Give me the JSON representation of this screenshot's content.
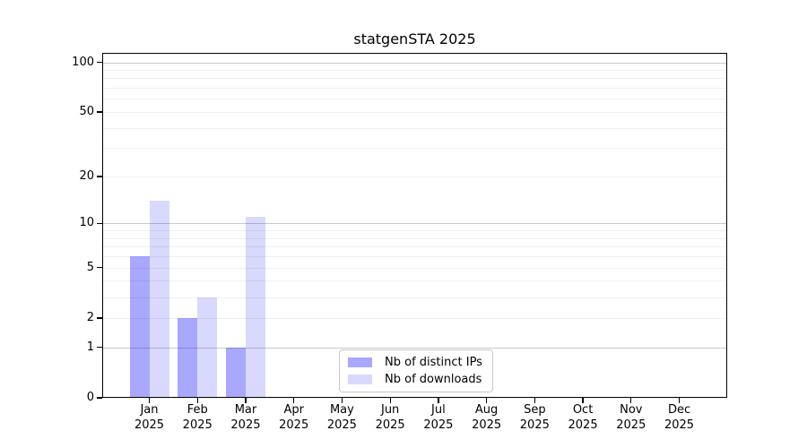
{
  "chart_data": {
    "type": "bar",
    "title": "statgenSTA 2025",
    "year": "2025",
    "categories": [
      "Jan",
      "Feb",
      "Mar",
      "Apr",
      "May",
      "Jun",
      "Jul",
      "Aug",
      "Sep",
      "Oct",
      "Nov",
      "Dec"
    ],
    "series": [
      {
        "name": "Nb of distinct IPs",
        "color": "rgba(0,0,255,0.34)",
        "color_hex_on_white": "#a8a8f4",
        "values": [
          6,
          2,
          1,
          0,
          0,
          0,
          0,
          0,
          0,
          0,
          0,
          0
        ]
      },
      {
        "name": "Nb of downloads",
        "color": "rgba(0,0,255,0.15)",
        "color_hex_on_white": "#d9d9f8",
        "values": [
          14,
          3,
          11,
          0,
          0,
          0,
          0,
          0,
          0,
          0,
          0,
          0
        ]
      }
    ],
    "yscale": "log1p",
    "ylim": [
      0,
      114
    ],
    "yticks": {
      "values": [
        0,
        1,
        2,
        5,
        10,
        20,
        50,
        100
      ],
      "labels": [
        "0",
        "1",
        "2",
        "5",
        "10",
        "20",
        "50",
        "100"
      ]
    },
    "grid": {
      "major": [
        1,
        10,
        100
      ],
      "minor": [
        2,
        3,
        4,
        5,
        6,
        7,
        8,
        9,
        20,
        30,
        40,
        50,
        60,
        70,
        80,
        90
      ]
    },
    "legend": {
      "position": "bottom-center"
    }
  }
}
